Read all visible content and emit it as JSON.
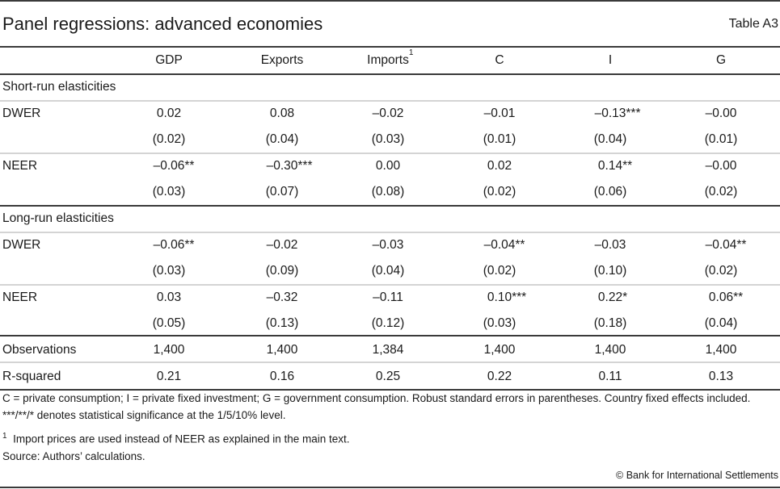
{
  "title": "Panel regressions: advanced economies",
  "table_number": "Table A3",
  "columns": [
    "GDP",
    "Exports",
    "Imports",
    "C",
    "I",
    "G"
  ],
  "imports_sup": "1",
  "sections": [
    {
      "heading": "Short-run elasticities",
      "rows": [
        {
          "label": "DWER",
          "values": [
            [
              "0.02",
              ""
            ],
            [
              "0.08",
              ""
            ],
            [
              "–0.02",
              ""
            ],
            [
              "–0.01",
              ""
            ],
            [
              "–0.13",
              "***"
            ],
            [
              "–0.00",
              ""
            ]
          ],
          "se": [
            "(0.02)",
            "(0.04)",
            "(0.03)",
            "(0.01)",
            "(0.04)",
            "(0.01)"
          ]
        },
        {
          "label": "NEER",
          "values": [
            [
              "–0.06",
              "**"
            ],
            [
              "–0.30",
              "***"
            ],
            [
              "0.00",
              ""
            ],
            [
              "0.02",
              ""
            ],
            [
              "0.14",
              "**"
            ],
            [
              "–0.00",
              ""
            ]
          ],
          "se": [
            "(0.03)",
            "(0.07)",
            "(0.08)",
            "(0.02)",
            "(0.06)",
            "(0.02)"
          ]
        }
      ]
    },
    {
      "heading": "Long-run elasticities",
      "rows": [
        {
          "label": "DWER",
          "values": [
            [
              "–0.06",
              "**"
            ],
            [
              "–0.02",
              ""
            ],
            [
              "–0.03",
              ""
            ],
            [
              "–0.04",
              "**"
            ],
            [
              "–0.03",
              ""
            ],
            [
              "–0.04",
              "**"
            ]
          ],
          "se": [
            "(0.03)",
            "(0.09)",
            "(0.04)",
            "(0.02)",
            "(0.10)",
            "(0.02)"
          ]
        },
        {
          "label": "NEER",
          "values": [
            [
              "0.03",
              ""
            ],
            [
              "–0.32",
              ""
            ],
            [
              "–0.11",
              ""
            ],
            [
              "0.10",
              "***"
            ],
            [
              "0.22",
              "*"
            ],
            [
              "0.06",
              "**"
            ]
          ],
          "se": [
            "(0.05)",
            "(0.13)",
            "(0.12)",
            "(0.03)",
            "(0.18)",
            "(0.04)"
          ]
        }
      ]
    }
  ],
  "observations": {
    "label": "Observations",
    "values": [
      "1,400",
      "1,400",
      "1,384",
      "1,400",
      "1,400",
      "1,400"
    ]
  },
  "rsquared": {
    "label": "R-squared",
    "values": [
      "0.21",
      "0.16",
      "0.25",
      "0.22",
      "0.11",
      "0.13"
    ]
  },
  "notes": "C = private consumption; I = private fixed investment; G = government consumption. Robust standard errors in parentheses. Country fixed effects included. ***/**/* denotes statistical significance at the 1/5/10% level.",
  "footnote_mark": "1",
  "footnote": "Import prices are used instead of NEER as explained in the main text.",
  "source": "Source: Authors’ calculations.",
  "copyright": "© Bank for International Settlements"
}
